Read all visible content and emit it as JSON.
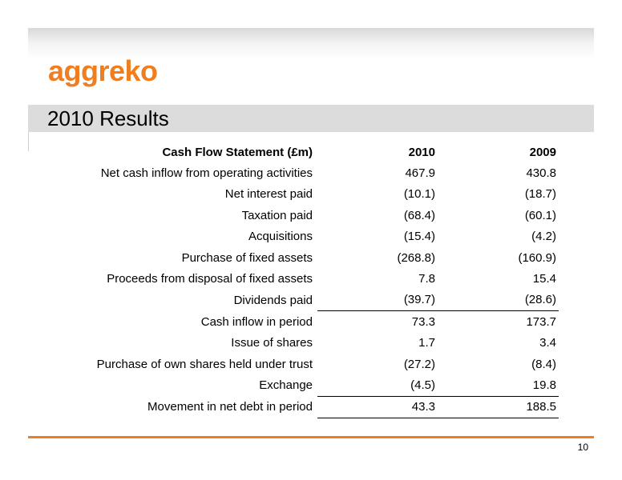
{
  "brand": {
    "logo_text": "aggreko",
    "accent_color": "#f07d1f"
  },
  "title": "2010 Results",
  "table": {
    "header": {
      "label": "Cash Flow Statement (£m)",
      "col1": "2010",
      "col2": "2009"
    },
    "rows": [
      {
        "label": "Net cash inflow from operating activities",
        "v2010": "467.9",
        "v2009": "430.8"
      },
      {
        "label": "Net interest paid",
        "v2010": "(10.1)",
        "v2009": "(18.7)"
      },
      {
        "label": "Taxation paid",
        "v2010": "(68.4)",
        "v2009": "(60.1)"
      },
      {
        "label": "Acquisitions",
        "v2010": "(15.4)",
        "v2009": "(4.2)"
      },
      {
        "label": "Purchase of fixed assets",
        "v2010": "(268.8)",
        "v2009": "(160.9)"
      },
      {
        "label": "Proceeds from disposal of fixed assets",
        "v2010": "7.8",
        "v2009": "15.4"
      },
      {
        "label": "Dividends paid",
        "v2010": "(39.7)",
        "v2009": "(28.6)"
      },
      {
        "label": "Cash inflow in period",
        "v2010": "73.3",
        "v2009": "173.7"
      },
      {
        "label": "Issue of shares",
        "v2010": "1.7",
        "v2009": "3.4"
      },
      {
        "label": "Purchase of own shares held under trust",
        "v2010": "(27.2)",
        "v2009": "(8.4)"
      },
      {
        "label": "Exchange",
        "v2010": "(4.5)",
        "v2009": "19.8"
      },
      {
        "label": "Movement in net debt in period",
        "v2010": "43.3",
        "v2009": "188.5"
      }
    ]
  },
  "footer": {
    "page_number": "10"
  }
}
